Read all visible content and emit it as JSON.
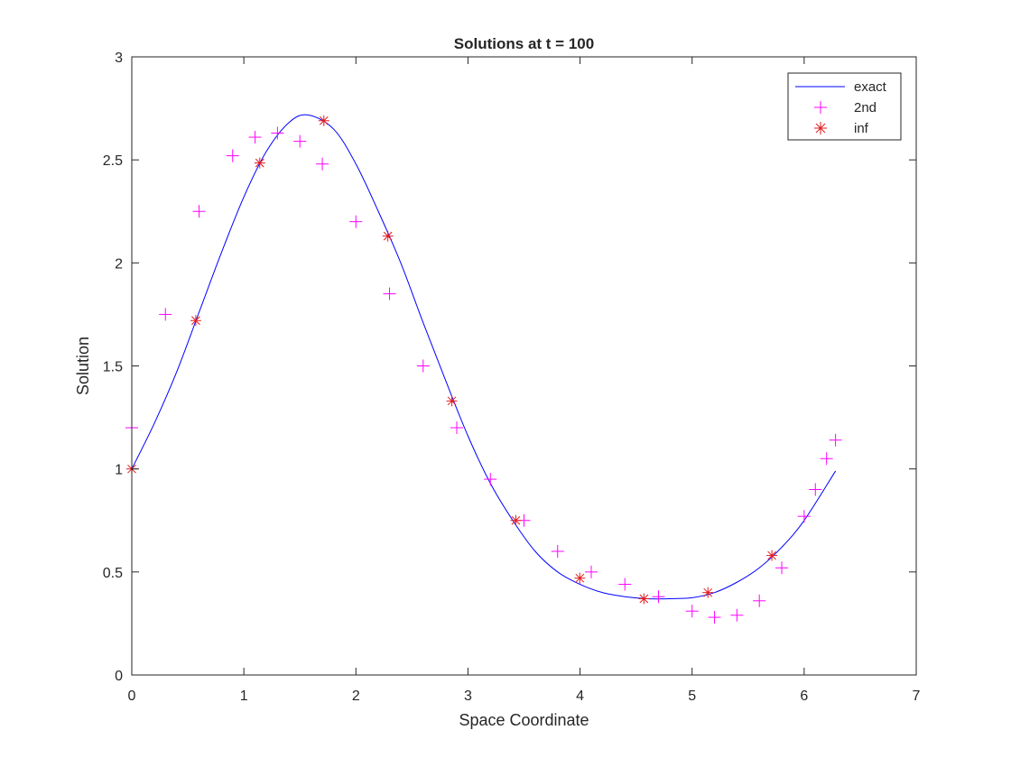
{
  "chart_data": {
    "type": "line",
    "title": "Solutions at t = 100",
    "xlabel": "Space Coordinate",
    "ylabel": "Solution",
    "xlim": [
      0,
      7
    ],
    "ylim": [
      0,
      3
    ],
    "xticks": [
      0,
      1,
      2,
      3,
      4,
      5,
      6,
      7
    ],
    "yticks": [
      0,
      0.5,
      1,
      1.5,
      2,
      2.5,
      3
    ],
    "xtick_labels": [
      "0",
      "1",
      "2",
      "3",
      "4",
      "5",
      "6",
      "7"
    ],
    "ytick_labels": [
      "0",
      "0.5",
      "1",
      "1.5",
      "2",
      "2.5",
      "3"
    ],
    "grid": false,
    "legend_position": "top-right",
    "series": [
      {
        "name": "exact",
        "style": "line",
        "color": "#0000ff",
        "x": [
          0,
          0.2,
          0.4,
          0.6,
          0.8,
          1.0,
          1.2,
          1.4,
          1.57,
          1.8,
          2.0,
          2.2,
          2.4,
          2.6,
          2.8,
          3.0,
          3.2,
          3.4,
          3.6,
          3.8,
          4.0,
          4.2,
          4.4,
          4.6,
          4.8,
          5.0,
          5.2,
          5.4,
          5.6,
          5.8,
          6.0,
          6.28
        ],
        "y": [
          1.0,
          1.22,
          1.47,
          1.76,
          2.05,
          2.32,
          2.54,
          2.68,
          2.718,
          2.65,
          2.48,
          2.25,
          2.0,
          1.71,
          1.43,
          1.16,
          0.93,
          0.75,
          0.6,
          0.5,
          0.44,
          0.4,
          0.38,
          0.37,
          0.37,
          0.375,
          0.4,
          0.45,
          0.52,
          0.62,
          0.75,
          0.99
        ]
      },
      {
        "name": "2nd",
        "style": "marker",
        "marker": "plus",
        "color": "#ff00ff",
        "x": [
          0,
          0.3,
          0.6,
          0.9,
          1.1,
          1.3,
          1.5,
          1.7,
          2.0,
          2.3,
          2.6,
          2.9,
          3.2,
          3.5,
          3.8,
          4.1,
          4.4,
          4.7,
          5.0,
          5.2,
          5.4,
          5.6,
          5.8,
          6.0,
          6.1,
          6.2,
          6.28
        ],
        "y": [
          1.2,
          1.75,
          2.25,
          2.52,
          2.61,
          2.63,
          2.59,
          2.48,
          2.2,
          1.85,
          1.5,
          1.2,
          0.95,
          0.75,
          0.6,
          0.5,
          0.44,
          0.38,
          0.31,
          0.28,
          0.29,
          0.36,
          0.52,
          0.77,
          0.9,
          1.05,
          1.14
        ]
      },
      {
        "name": "inf",
        "style": "marker",
        "marker": "asterisk",
        "color": "#e31a1c",
        "x": [
          0,
          0.571,
          1.142,
          1.714,
          2.285,
          2.856,
          3.427,
          3.998,
          4.57,
          5.141,
          5.712
        ],
        "y": [
          1.0,
          1.72,
          2.485,
          2.69,
          2.13,
          1.33,
          0.75,
          0.47,
          0.37,
          0.4,
          0.58
        ]
      }
    ]
  }
}
